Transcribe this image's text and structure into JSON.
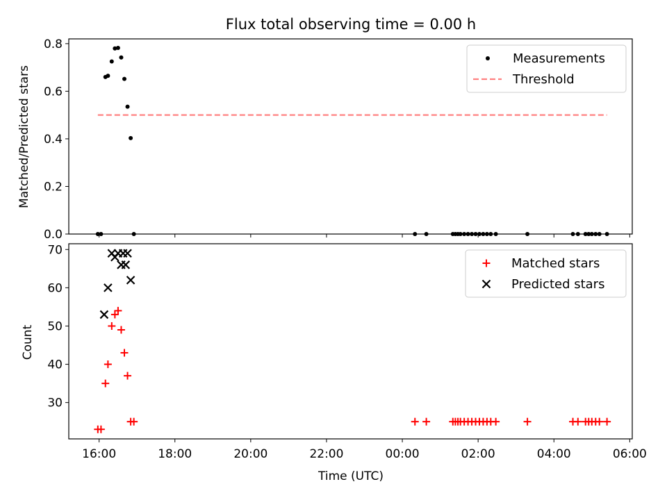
{
  "chart_data": [
    {
      "type": "scatter",
      "title": "Flux total observing time = 0.00 h",
      "xlabel": "",
      "ylabel": "Matched/Predicted stars",
      "ylim": [
        0,
        0.82
      ],
      "yticks": [
        "0.0",
        "0.2",
        "0.4",
        "0.6",
        "0.8"
      ],
      "ytick_values": [
        0,
        0.2,
        0.4,
        0.6,
        0.8
      ],
      "legend_position": "top-right",
      "series": [
        {
          "name": "Measurements",
          "marker": "dot",
          "color": "#000000",
          "points": [
            [
              "15:58",
              0.0
            ],
            [
              "16:03",
              0.0
            ],
            [
              "16:10",
              0.66
            ],
            [
              "16:14",
              0.665
            ],
            [
              "16:20",
              0.725
            ],
            [
              "16:25",
              0.78
            ],
            [
              "16:30",
              0.782
            ],
            [
              "16:35",
              0.742
            ],
            [
              "16:40",
              0.652
            ],
            [
              "16:45",
              0.535
            ],
            [
              "16:50",
              0.403
            ],
            [
              "16:55",
              0.0
            ],
            [
              "00:20",
              0.0
            ],
            [
              "00:38",
              0.0
            ],
            [
              "01:20",
              0.0
            ],
            [
              "01:24",
              0.0
            ],
            [
              "01:28",
              0.0
            ],
            [
              "01:32",
              0.0
            ],
            [
              "01:38",
              0.0
            ],
            [
              "01:44",
              0.0
            ],
            [
              "01:50",
              0.0
            ],
            [
              "01:56",
              0.0
            ],
            [
              "02:02",
              0.0
            ],
            [
              "02:08",
              0.0
            ],
            [
              "02:14",
              0.0
            ],
            [
              "02:20",
              0.0
            ],
            [
              "02:28",
              0.0
            ],
            [
              "03:18",
              0.0
            ],
            [
              "04:30",
              0.0
            ],
            [
              "04:38",
              0.0
            ],
            [
              "04:50",
              0.0
            ],
            [
              "04:55",
              0.0
            ],
            [
              "05:00",
              0.0
            ],
            [
              "05:06",
              0.0
            ],
            [
              "05:12",
              0.0
            ],
            [
              "05:24",
              0.0
            ]
          ]
        },
        {
          "name": "Threshold",
          "line_style": "dashed",
          "color": "#ff8080",
          "points": [
            [
              "15:58",
              0.5
            ],
            [
              "05:24",
              0.5
            ]
          ]
        }
      ]
    },
    {
      "type": "scatter",
      "title": "",
      "xlabel": "Time (UTC)",
      "ylabel": "Count",
      "ylim": [
        20.5,
        71.5
      ],
      "yticks": [
        "30",
        "40",
        "50",
        "60",
        "70"
      ],
      "ytick_values": [
        30,
        40,
        50,
        60,
        70
      ],
      "xticks": [
        "16:00",
        "18:00",
        "20:00",
        "22:00",
        "00:00",
        "02:00",
        "04:00",
        "06:00"
      ],
      "x_range": [
        "15:12",
        "06:04"
      ],
      "legend_position": "top-right",
      "series": [
        {
          "name": "Matched stars",
          "marker": "plus",
          "color": "#ff0000",
          "points": [
            [
              "15:58",
              23
            ],
            [
              "16:03",
              23
            ],
            [
              "16:10",
              35
            ],
            [
              "16:14",
              40
            ],
            [
              "16:20",
              50
            ],
            [
              "16:25",
              53
            ],
            [
              "16:30",
              54
            ],
            [
              "16:35",
              49
            ],
            [
              "16:40",
              43
            ],
            [
              "16:45",
              37
            ],
            [
              "16:50",
              25
            ],
            [
              "16:55",
              25
            ],
            [
              "00:20",
              25
            ],
            [
              "00:38",
              25
            ],
            [
              "01:20",
              25
            ],
            [
              "01:24",
              25
            ],
            [
              "01:28",
              25
            ],
            [
              "01:32",
              25
            ],
            [
              "01:38",
              25
            ],
            [
              "01:44",
              25
            ],
            [
              "01:50",
              25
            ],
            [
              "01:56",
              25
            ],
            [
              "02:02",
              25
            ],
            [
              "02:08",
              25
            ],
            [
              "02:14",
              25
            ],
            [
              "02:20",
              25
            ],
            [
              "02:28",
              25
            ],
            [
              "03:18",
              25
            ],
            [
              "04:30",
              25
            ],
            [
              "04:38",
              25
            ],
            [
              "04:50",
              25
            ],
            [
              "04:55",
              25
            ],
            [
              "05:00",
              25
            ],
            [
              "05:06",
              25
            ],
            [
              "05:12",
              25
            ],
            [
              "05:24",
              25
            ]
          ]
        },
        {
          "name": "Predicted stars",
          "marker": "x",
          "color": "#000000",
          "points": [
            [
              "16:08",
              53
            ],
            [
              "16:14",
              60
            ],
            [
              "16:20",
              69
            ],
            [
              "16:25",
              68
            ],
            [
              "16:30",
              69
            ],
            [
              "16:35",
              66
            ],
            [
              "16:38",
              69
            ],
            [
              "16:42",
              66
            ],
            [
              "16:45",
              69
            ],
            [
              "16:50",
              62
            ]
          ]
        }
      ]
    }
  ]
}
